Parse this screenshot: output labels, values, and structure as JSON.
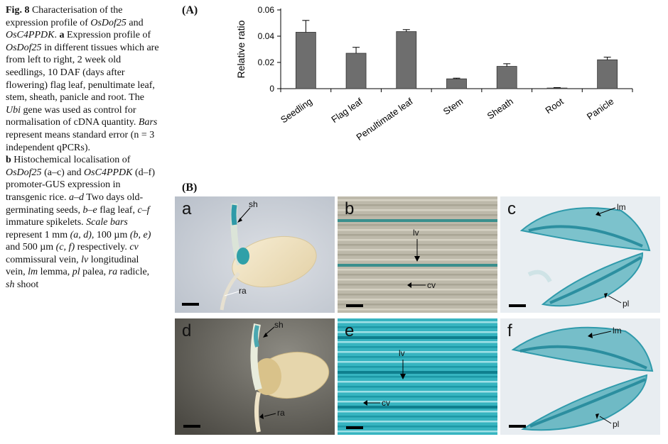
{
  "caption": {
    "fig_label": "Fig. 8",
    "title_pre": "Characterisation of the expression profile of",
    "gene1": "OsDof25",
    "and": "and",
    "gene2": "OsC4PPDK",
    "title_end": ".",
    "a_label": "a",
    "a_text_pre": "Expression profile of",
    "a_gene": "OsDof25",
    "a_text_mid": "in different tissues which are from left to right, 2 week old seedlings, 10 DAF (days after flowering) flag leaf, penultimate leaf, stem, sheath, panicle and root. The",
    "a_ubi": "Ubi",
    "a_text_mid2": "gene was used as control for normalisation of cDNA quantity.",
    "a_bars": "Bars",
    "a_text_end": "represent means standard error (n = 3 independent qPCRs).",
    "b_label": "b",
    "b_text_pre": "Histochemical localisation of",
    "b_gene1": "OsDof25",
    "b_range1": "(a–c)",
    "b_and": "and",
    "b_gene2": "OsC4PPDK",
    "b_range2": "(d–f)",
    "b_text_mid": "promoter-GUS expression in transgenic rice.",
    "b_ad": "a–d",
    "b_text_mid2": "Two days old-germinating seeds,",
    "b_be": "b–e",
    "b_text_mid3": "flag leaf,",
    "b_cf": "c–f",
    "b_text_mid4": "immature spikelets.",
    "b_scale": "Scale bars",
    "b_text_mid5": "represent 1 mm",
    "b_scale1": "(a, d)",
    "b_text_mid6": ", 100 µm",
    "b_scale2": "(b, e)",
    "b_text_mid7": "and 500 µm",
    "b_scale3": "(c, f)",
    "b_text_mid8": "respectively.",
    "abbr_cv": "cv",
    "abbr_cv_text": "commissural vein,",
    "abbr_lv": "lv",
    "abbr_lv_text": "longitudinal vein,",
    "abbr_lm": "lm",
    "abbr_lm_text": "lemma,",
    "abbr_pl": "pl",
    "abbr_pl_text": "palea,",
    "abbr_ra": "ra",
    "abbr_ra_text": "radicle,",
    "abbr_sh": "sh",
    "abbr_sh_text": "shoot"
  },
  "panel_labels": {
    "A": "(A)",
    "B": "(B)"
  },
  "chart_data": {
    "type": "bar",
    "categories": [
      "Seedling",
      "Flag leaf",
      "Penultimate leaf",
      "Stem",
      "Sheath",
      "Root",
      "Panicle"
    ],
    "values": [
      0.043,
      0.027,
      0.0435,
      0.0075,
      0.017,
      0.0005,
      0.022
    ],
    "errors": [
      0.009,
      0.0045,
      0.0015,
      0.0005,
      0.002,
      0.0003,
      0.002
    ],
    "ylabel": "Relative ratio",
    "ylim": [
      0,
      0.06
    ],
    "yticks": [
      0,
      0.02,
      0.04,
      0.06
    ],
    "ytick_labels": [
      "0",
      "0.02",
      "0.04",
      "0.06"
    ],
    "bar_color": "#6e6e6e",
    "grid": false
  },
  "micrographs": [
    {
      "letter": "a",
      "labels": [
        "sh",
        "ra"
      ]
    },
    {
      "letter": "b",
      "labels": [
        "lv",
        "cv"
      ]
    },
    {
      "letter": "c",
      "labels": [
        "lm",
        "pl"
      ]
    },
    {
      "letter": "d",
      "labels": [
        "sh",
        "ra"
      ]
    },
    {
      "letter": "e",
      "labels": [
        "lv",
        "cv"
      ]
    },
    {
      "letter": "f",
      "labels": [
        "lm",
        "pl"
      ]
    }
  ],
  "colors": {
    "gus_blue": "#1aa3b0",
    "seed": "#efe3c6",
    "bg_light": "#c8ced6",
    "leaf_pale": "#bdb9aa"
  }
}
